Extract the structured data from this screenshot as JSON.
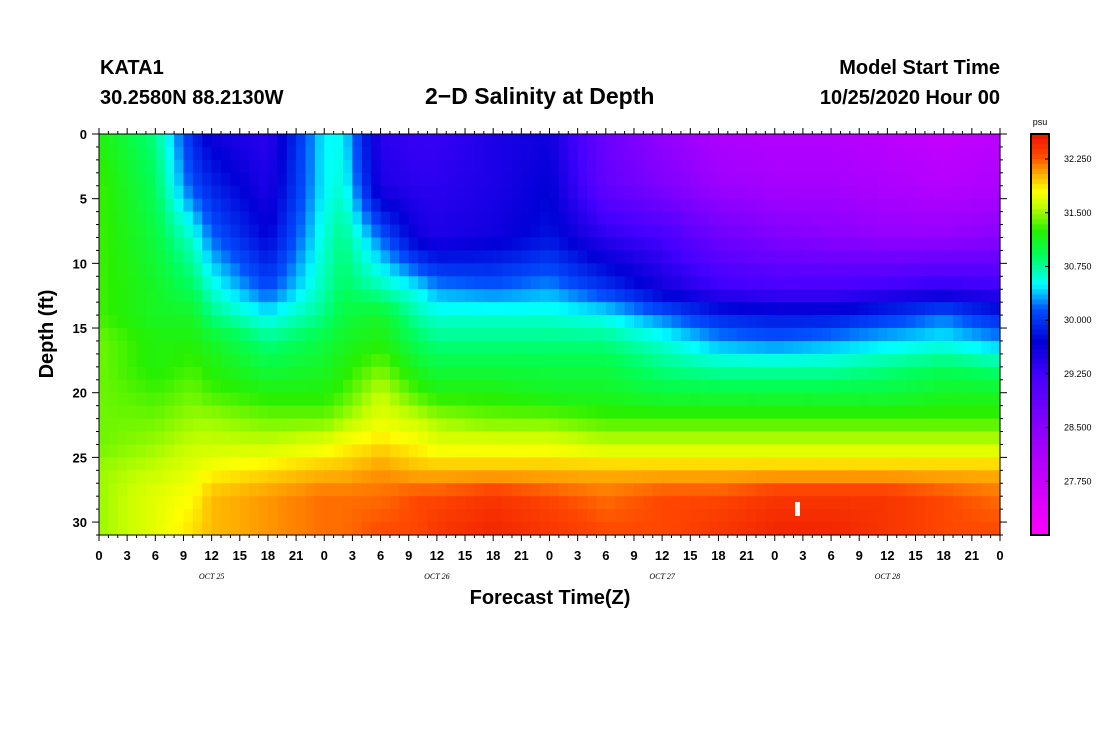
{
  "header": {
    "station": "KATA1",
    "coordinates": "30.2580N 88.2130W",
    "title": "2−D Salinity at Depth",
    "start_label": "Model Start Time",
    "start_value": "10/25/2020 Hour 00"
  },
  "chart_data": {
    "type": "heatmap",
    "title": "2-D Salinity at Depth",
    "xlabel": "Forecast Time(Z)",
    "ylabel": "Depth (ft)",
    "x_ticks": [
      "0",
      "3",
      "6",
      "9",
      "12",
      "15",
      "18",
      "21",
      "0",
      "3",
      "6",
      "9",
      "12",
      "15",
      "18",
      "21",
      "0",
      "3",
      "6",
      "9",
      "12",
      "15",
      "18",
      "21",
      "0",
      "3",
      "6",
      "9",
      "12",
      "15",
      "18",
      "21",
      "0"
    ],
    "x_range_hours": [
      0,
      96
    ],
    "date_labels": [
      {
        "label": "OCT 25",
        "hour": 12
      },
      {
        "label": "OCT 26",
        "hour": 36
      },
      {
        "label": "OCT 27",
        "hour": 60
      },
      {
        "label": "OCT 28",
        "hour": 84
      }
    ],
    "y_ticks": [
      0,
      5,
      10,
      15,
      20,
      25,
      30
    ],
    "ylim": [
      0,
      31
    ],
    "colorbar": {
      "unit": "psu",
      "ticks": [
        32.25,
        31.5,
        30.75,
        30.0,
        29.25,
        28.5,
        27.75
      ],
      "tick_labels": [
        "32.250",
        "31.500",
        "30.750",
        "30.000",
        "29.250",
        "28.500",
        "27.750"
      ],
      "range": [
        27.0,
        32.6
      ]
    },
    "grid_depths": [
      0,
      4,
      8,
      12,
      14,
      16,
      18,
      20,
      22,
      24,
      26,
      28,
      31
    ],
    "grid_hours": [
      0,
      6,
      10,
      12,
      18,
      24,
      26,
      30,
      34,
      36,
      42,
      48,
      54,
      60,
      66,
      72,
      78,
      84,
      90,
      96
    ],
    "salinity_psu": [
      [
        31.2,
        30.8,
        29.9,
        29.6,
        29.4,
        30.5,
        30.5,
        29.4,
        29.3,
        29.3,
        29.5,
        29.6,
        28.8,
        28.4,
        28.1,
        28.0,
        28.0,
        27.9,
        27.8,
        27.9
      ],
      [
        31.3,
        30.9,
        30.1,
        29.9,
        29.5,
        30.5,
        30.6,
        29.5,
        29.4,
        29.4,
        29.5,
        29.7,
        28.9,
        28.6,
        28.3,
        28.2,
        28.2,
        28.1,
        28.0,
        28.1
      ],
      [
        31.3,
        31.0,
        30.6,
        30.2,
        29.7,
        30.6,
        30.8,
        30.2,
        29.6,
        29.5,
        29.6,
        29.8,
        29.4,
        29.2,
        28.8,
        28.6,
        28.5,
        28.4,
        28.4,
        28.5
      ],
      [
        31.3,
        31.1,
        30.9,
        30.6,
        30.1,
        30.7,
        30.9,
        30.7,
        30.5,
        30.3,
        30.2,
        30.3,
        30.0,
        29.6,
        29.3,
        29.2,
        29.2,
        29.3,
        29.4,
        29.3
      ],
      [
        31.3,
        31.1,
        31.1,
        30.8,
        30.5,
        30.8,
        31.0,
        31.1,
        30.7,
        30.6,
        30.6,
        30.6,
        30.5,
        30.2,
        29.9,
        29.8,
        29.8,
        30.0,
        30.2,
        29.9
      ],
      [
        31.4,
        31.2,
        31.2,
        31.1,
        30.8,
        31.0,
        31.1,
        31.2,
        30.9,
        30.8,
        30.8,
        30.8,
        30.8,
        30.6,
        30.3,
        30.2,
        30.3,
        30.4,
        30.5,
        30.3
      ],
      [
        31.4,
        31.2,
        31.3,
        31.2,
        31.0,
        31.1,
        31.2,
        31.4,
        31.1,
        31.0,
        31.0,
        31.0,
        31.0,
        30.8,
        30.7,
        30.7,
        30.7,
        30.8,
        30.9,
        30.8
      ],
      [
        31.4,
        31.3,
        31.4,
        31.3,
        31.2,
        31.2,
        31.3,
        31.6,
        31.3,
        31.2,
        31.2,
        31.1,
        31.1,
        31.0,
        31.0,
        31.0,
        31.0,
        31.0,
        31.1,
        31.1
      ],
      [
        31.4,
        31.4,
        31.5,
        31.5,
        31.4,
        31.4,
        31.5,
        31.7,
        31.6,
        31.5,
        31.4,
        31.4,
        31.3,
        31.3,
        31.3,
        31.3,
        31.3,
        31.3,
        31.3,
        31.3
      ],
      [
        31.4,
        31.5,
        31.6,
        31.6,
        31.6,
        31.7,
        31.8,
        31.9,
        31.8,
        31.7,
        31.7,
        31.7,
        31.6,
        31.6,
        31.6,
        31.6,
        31.6,
        31.6,
        31.6,
        31.6
      ],
      [
        31.5,
        31.6,
        31.7,
        31.8,
        31.9,
        32.0,
        32.0,
        32.1,
        32.0,
        32.0,
        32.0,
        32.0,
        32.0,
        32.0,
        32.0,
        32.0,
        32.0,
        32.0,
        32.0,
        32.0
      ],
      [
        31.5,
        31.7,
        31.8,
        32.0,
        32.1,
        32.2,
        32.2,
        32.2,
        32.3,
        32.3,
        32.4,
        32.3,
        32.2,
        32.3,
        32.3,
        32.4,
        32.4,
        32.4,
        32.3,
        32.2
      ],
      [
        31.5,
        31.7,
        31.9,
        32.0,
        32.1,
        32.2,
        32.2,
        32.3,
        32.3,
        32.4,
        32.5,
        32.4,
        32.3,
        32.3,
        32.4,
        32.5,
        32.5,
        32.4,
        32.3,
        32.3
      ]
    ]
  }
}
